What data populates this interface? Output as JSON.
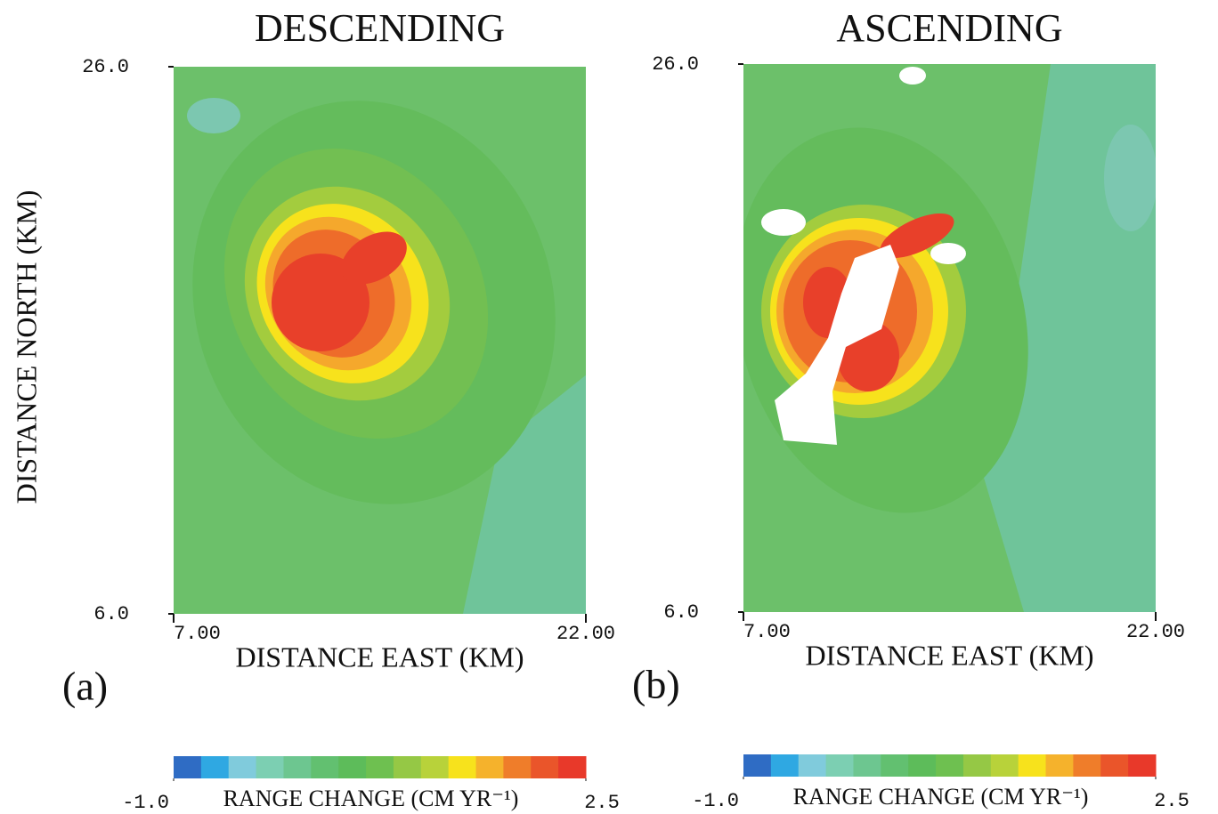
{
  "chart_data": [
    {
      "type": "map",
      "title": "DESCENDING",
      "panel_label": "(a)",
      "xlabel": "DISTANCE EAST (KM)",
      "ylabel": "DISTANCE NORTH (KM)",
      "xlim": [
        7,
        22
      ],
      "ylim": [
        6,
        26
      ],
      "xticks": [
        {
          "value": 7,
          "label": "7.00"
        },
        {
          "value": 22,
          "label": "22.00"
        }
      ],
      "yticks": [
        {
          "value": 6,
          "label": "6.0"
        },
        {
          "value": 26,
          "label": "26.0"
        }
      ],
      "colorbar": {
        "label": "RANGE CHANGE (CM YR⁻¹)",
        "lim": [
          -1,
          2.5
        ],
        "ticks": [
          {
            "value": -1,
            "label": "-1.0"
          },
          2.5
        ],
        "colors": [
          "#2f6cc4",
          "#2fa8e2",
          "#80cbdc",
          "#7ccfb2",
          "#6dc690",
          "#62c070",
          "#5dbc5a",
          "#6ec050",
          "#95c845",
          "#b8d23a",
          "#f7e21c",
          "#f5b22c",
          "#ef7d2a",
          "#ea552a",
          "#e8392a"
        ]
      }
    },
    {
      "type": "map",
      "title": "ASCENDING",
      "panel_label": "(b)",
      "xlabel": "DISTANCE EAST (KM)",
      "xlim": [
        7,
        22
      ],
      "ylim": [
        6,
        26
      ],
      "xticks": [
        {
          "value": 7,
          "label": "7.00"
        },
        {
          "value": 22,
          "label": "22.00"
        }
      ],
      "yticks": [
        {
          "value": 6,
          "label": "6.0"
        },
        {
          "value": 26,
          "label": "26.0"
        }
      ],
      "colorbar": {
        "label": "RANGE CHANGE (CM YR⁻¹)",
        "lim": [
          -1,
          2.5
        ],
        "ticks": [
          {
            "value": -1,
            "label": "-1.0"
          },
          2.5
        ],
        "colors": [
          "#2f6cc4",
          "#2fa8e2",
          "#80cbdc",
          "#7ccfb2",
          "#6dc690",
          "#62c070",
          "#5dbc5a",
          "#6ec050",
          "#95c845",
          "#b8d23a",
          "#f7e21c",
          "#f5b22c",
          "#ef7d2a",
          "#ea552a",
          "#e8392a"
        ]
      }
    }
  ]
}
